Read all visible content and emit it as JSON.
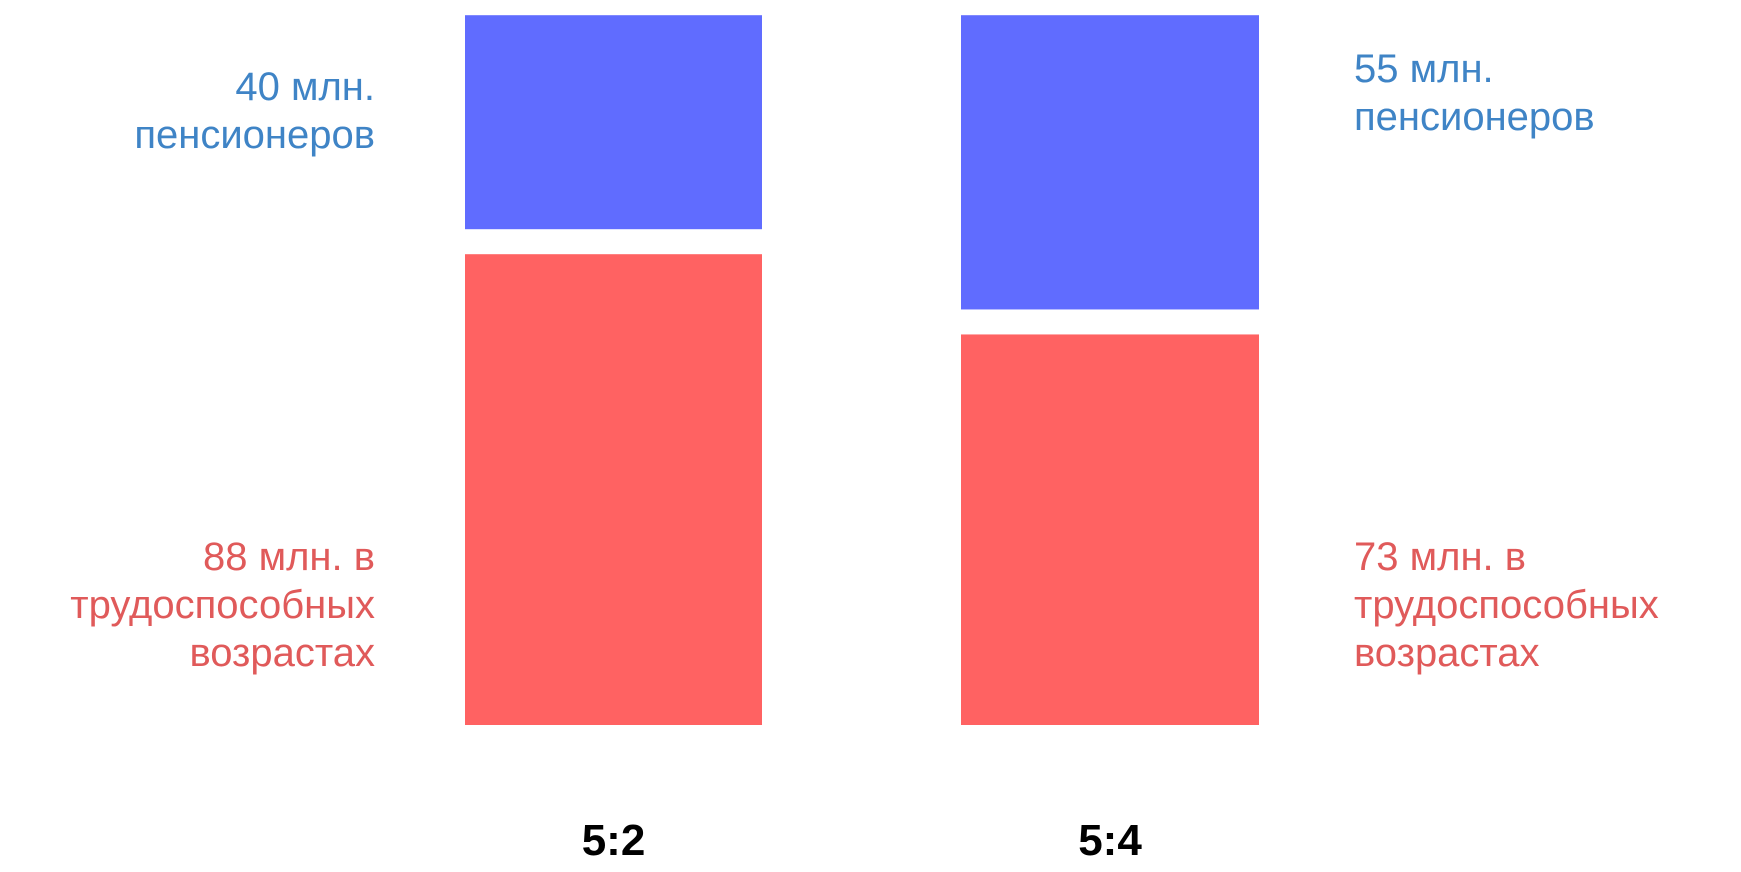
{
  "chart_data": {
    "type": "bar",
    "stacked": true,
    "categories": [
      "5:2",
      "5:4"
    ],
    "series": [
      {
        "key": "working_age",
        "values": [
          88,
          73
        ],
        "color": "#ff6262",
        "labels": [
          [
            "88 млн. в",
            "трудоспособных",
            "возрастах"
          ],
          [
            "73 млн. в",
            "трудоспособных",
            "возрастах"
          ]
        ],
        "label_color": "#e05a5a"
      },
      {
        "key": "pensioners",
        "values": [
          40,
          55
        ],
        "color": "#606cff",
        "labels": [
          [
            "40 млн.",
            "пенсионеров"
          ],
          [
            "55 млн.",
            "пенсионеров"
          ]
        ],
        "label_color": "#3f84c6"
      }
    ],
    "ratio_labels": [
      "5:2",
      "5:4"
    ],
    "legend": "none",
    "grid": false
  }
}
